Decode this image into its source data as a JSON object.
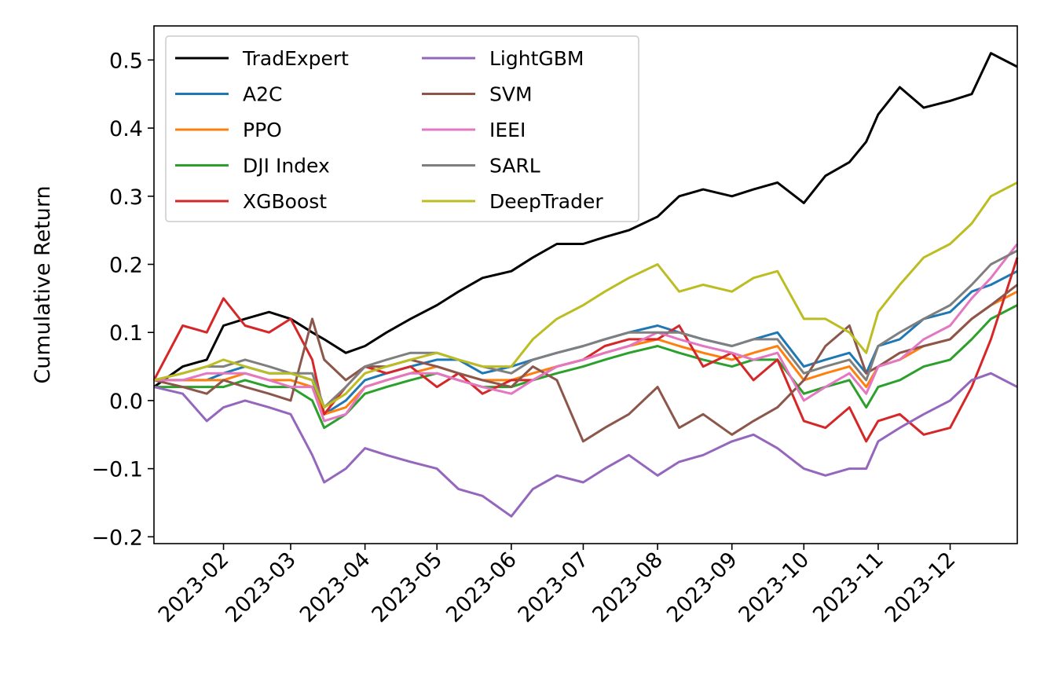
{
  "chart_data": {
    "type": "line",
    "title": "",
    "xlabel": "",
    "ylabel": "Cumulative Return",
    "x_range": [
      "2023-01-03",
      "2023-12-29"
    ],
    "ylim": [
      -0.21,
      0.55
    ],
    "x_ticks": [
      "2023-02",
      "2023-03",
      "2023-04",
      "2023-05",
      "2023-06",
      "2023-07",
      "2023-08",
      "2023-09",
      "2023-10",
      "2023-11",
      "2023-12"
    ],
    "y_ticks": [
      -0.2,
      -0.1,
      0.0,
      0.1,
      0.2,
      0.3,
      0.4,
      0.5
    ],
    "y_tick_labels": [
      "−0.2",
      "−0.1",
      "0.0",
      "0.1",
      "0.2",
      "0.3",
      "0.4",
      "0.5"
    ],
    "grid": false,
    "legend": {
      "location": "upper-left",
      "columns": 2
    },
    "x": [
      "2023-01-03",
      "2023-01-15",
      "2023-01-25",
      "2023-02-01",
      "2023-02-10",
      "2023-02-20",
      "2023-03-01",
      "2023-03-10",
      "2023-03-15",
      "2023-03-24",
      "2023-04-01",
      "2023-04-10",
      "2023-04-20",
      "2023-05-01",
      "2023-05-10",
      "2023-05-20",
      "2023-06-01",
      "2023-06-10",
      "2023-06-20",
      "2023-07-01",
      "2023-07-10",
      "2023-07-20",
      "2023-08-01",
      "2023-08-10",
      "2023-08-20",
      "2023-09-01",
      "2023-09-10",
      "2023-09-20",
      "2023-10-01",
      "2023-10-10",
      "2023-10-20",
      "2023-10-27",
      "2023-11-01",
      "2023-11-10",
      "2023-11-20",
      "2023-12-01",
      "2023-12-10",
      "2023-12-18",
      "2023-12-29"
    ],
    "series": [
      {
        "name": "TradExpert",
        "color": "#000000",
        "values": [
          0.02,
          0.05,
          0.06,
          0.11,
          0.12,
          0.13,
          0.12,
          0.1,
          0.09,
          0.07,
          0.08,
          0.1,
          0.12,
          0.14,
          0.16,
          0.18,
          0.19,
          0.21,
          0.23,
          0.23,
          0.24,
          0.25,
          0.27,
          0.3,
          0.31,
          0.3,
          0.31,
          0.32,
          0.29,
          0.33,
          0.35,
          0.38,
          0.42,
          0.46,
          0.43,
          0.44,
          0.45,
          0.51,
          0.49
        ]
      },
      {
        "name": "A2C",
        "color": "#1f77b4",
        "values": [
          0.03,
          0.03,
          0.03,
          0.04,
          0.05,
          0.04,
          0.04,
          0.03,
          -0.02,
          0.0,
          0.03,
          0.04,
          0.05,
          0.06,
          0.06,
          0.04,
          0.05,
          0.06,
          0.07,
          0.08,
          0.09,
          0.1,
          0.11,
          0.1,
          0.09,
          0.08,
          0.09,
          0.1,
          0.05,
          0.06,
          0.07,
          0.04,
          0.08,
          0.09,
          0.12,
          0.13,
          0.16,
          0.17,
          0.19
        ]
      },
      {
        "name": "PPO",
        "color": "#ff7f0e",
        "values": [
          0.03,
          0.03,
          0.03,
          0.03,
          0.04,
          0.03,
          0.03,
          0.02,
          -0.02,
          -0.01,
          0.02,
          0.03,
          0.04,
          0.05,
          0.04,
          0.03,
          0.03,
          0.04,
          0.05,
          0.06,
          0.07,
          0.08,
          0.09,
          0.08,
          0.07,
          0.06,
          0.07,
          0.08,
          0.03,
          0.04,
          0.05,
          0.02,
          0.05,
          0.06,
          0.08,
          0.09,
          0.12,
          0.14,
          0.16
        ]
      },
      {
        "name": "DJI Index",
        "color": "#2ca02c",
        "values": [
          0.02,
          0.02,
          0.02,
          0.02,
          0.03,
          0.02,
          0.02,
          0.0,
          -0.04,
          -0.02,
          0.01,
          0.02,
          0.03,
          0.04,
          0.03,
          0.02,
          0.02,
          0.03,
          0.04,
          0.05,
          0.06,
          0.07,
          0.08,
          0.07,
          0.06,
          0.05,
          0.06,
          0.06,
          0.01,
          0.02,
          0.03,
          -0.01,
          0.02,
          0.03,
          0.05,
          0.06,
          0.09,
          0.12,
          0.14
        ]
      },
      {
        "name": "XGBoost",
        "color": "#d62728",
        "values": [
          0.03,
          0.11,
          0.1,
          0.15,
          0.11,
          0.1,
          0.12,
          0.06,
          -0.02,
          0.02,
          0.05,
          0.04,
          0.05,
          0.02,
          0.04,
          0.01,
          0.03,
          0.03,
          0.05,
          0.06,
          0.08,
          0.09,
          0.09,
          0.11,
          0.05,
          0.07,
          0.03,
          0.06,
          -0.03,
          -0.04,
          -0.01,
          -0.06,
          -0.03,
          -0.02,
          -0.05,
          -0.04,
          0.02,
          0.09,
          0.21
        ]
      },
      {
        "name": "LightGBM",
        "color": "#9467bd",
        "values": [
          0.02,
          0.01,
          -0.03,
          -0.01,
          0.0,
          -0.01,
          -0.02,
          -0.08,
          -0.12,
          -0.1,
          -0.07,
          -0.08,
          -0.09,
          -0.1,
          -0.13,
          -0.14,
          -0.17,
          -0.13,
          -0.11,
          -0.12,
          -0.1,
          -0.08,
          -0.11,
          -0.09,
          -0.08,
          -0.06,
          -0.05,
          -0.07,
          -0.1,
          -0.11,
          -0.1,
          -0.1,
          -0.06,
          -0.04,
          -0.02,
          0.0,
          0.03,
          0.04,
          0.02
        ]
      },
      {
        "name": "SVM",
        "color": "#8c564b",
        "values": [
          0.03,
          0.02,
          0.01,
          0.03,
          0.02,
          0.01,
          0.0,
          0.12,
          0.06,
          0.03,
          0.05,
          0.05,
          0.06,
          0.05,
          0.04,
          0.03,
          0.02,
          0.05,
          0.03,
          -0.06,
          -0.04,
          -0.02,
          0.02,
          -0.04,
          -0.02,
          -0.05,
          -0.03,
          -0.01,
          0.03,
          0.08,
          0.11,
          0.04,
          0.05,
          0.07,
          0.08,
          0.09,
          0.12,
          0.14,
          0.17
        ]
      },
      {
        "name": "IEEI",
        "color": "#e377c2",
        "values": [
          0.03,
          0.03,
          0.04,
          0.04,
          0.04,
          0.03,
          0.02,
          0.02,
          -0.03,
          -0.02,
          0.02,
          0.03,
          0.04,
          0.04,
          0.03,
          0.02,
          0.01,
          0.03,
          0.05,
          0.06,
          0.07,
          0.08,
          0.1,
          0.09,
          0.08,
          0.07,
          0.06,
          0.07,
          0.0,
          0.02,
          0.04,
          0.01,
          0.05,
          0.06,
          0.09,
          0.11,
          0.15,
          0.18,
          0.23
        ]
      },
      {
        "name": "SARL",
        "color": "#7f7f7f",
        "values": [
          0.03,
          0.04,
          0.05,
          0.05,
          0.06,
          0.05,
          0.04,
          0.04,
          -0.01,
          0.02,
          0.05,
          0.06,
          0.07,
          0.07,
          0.06,
          0.05,
          0.04,
          0.06,
          0.07,
          0.08,
          0.09,
          0.1,
          0.1,
          0.1,
          0.09,
          0.08,
          0.09,
          0.09,
          0.04,
          0.05,
          0.06,
          0.03,
          0.08,
          0.1,
          0.12,
          0.14,
          0.17,
          0.2,
          0.22
        ]
      },
      {
        "name": "DeepTrader",
        "color": "#bcbd22",
        "values": [
          0.03,
          0.04,
          0.05,
          0.06,
          0.05,
          0.04,
          0.04,
          0.03,
          -0.01,
          0.01,
          0.04,
          0.05,
          0.06,
          0.07,
          0.06,
          0.05,
          0.05,
          0.09,
          0.12,
          0.14,
          0.16,
          0.18,
          0.2,
          0.16,
          0.17,
          0.16,
          0.18,
          0.19,
          0.12,
          0.12,
          0.1,
          0.07,
          0.13,
          0.17,
          0.21,
          0.23,
          0.26,
          0.3,
          0.32
        ]
      }
    ]
  }
}
